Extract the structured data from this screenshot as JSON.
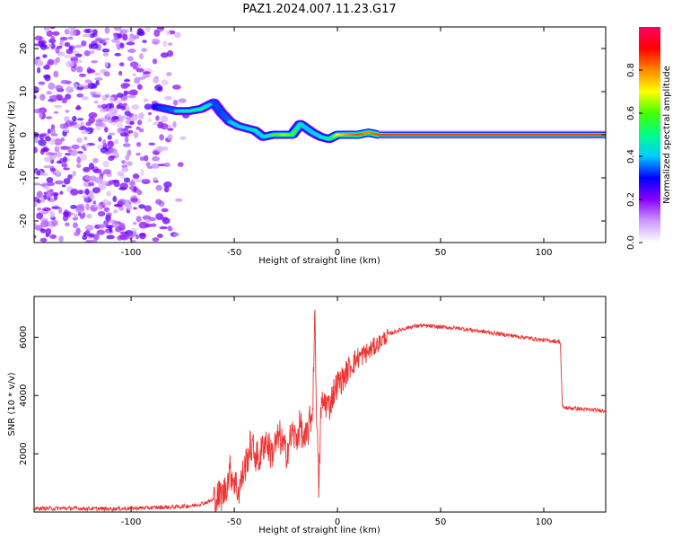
{
  "title": "PAZ1.2024.007.11.23.G17",
  "chart_data": [
    {
      "type": "heatmap",
      "xlabel": "Height of straight line (km)",
      "ylabel": "Frequency (Hz)",
      "xlim": [
        -147,
        130
      ],
      "ylim": [
        -25,
        25
      ],
      "xticks": [
        -100,
        -50,
        0,
        50,
        100
      ],
      "yticks": [
        -20,
        -10,
        0,
        10,
        20
      ],
      "colorbar": {
        "label": "Normalized spectral amplitude",
        "range": [
          0,
          1
        ],
        "ticks": [
          0.0,
          0.2,
          0.4,
          0.6,
          0.8
        ],
        "colors": [
          "#ffffff",
          "#cc99ff",
          "#8800ff",
          "#0000ff",
          "#00ccff",
          "#00ff88",
          "#44ff00",
          "#ffff00",
          "#ff8800",
          "#ff0000",
          "#ff0066"
        ]
      },
      "noise_region": {
        "x": [
          -147,
          -70
        ],
        "y": [
          -25,
          25
        ],
        "amplitude": [
          0.05,
          0.25
        ]
      },
      "ridge": [
        {
          "x": -88,
          "freq": 6.5,
          "amp": 0.3
        },
        {
          "x": -83,
          "freq": 6.0,
          "amp": 0.35
        },
        {
          "x": -78,
          "freq": 5.5,
          "amp": 0.4
        },
        {
          "x": -72,
          "freq": 5.5,
          "amp": 0.45
        },
        {
          "x": -66,
          "freq": 6.0,
          "amp": 0.5
        },
        {
          "x": -60,
          "freq": 7.5,
          "amp": 0.35
        },
        {
          "x": -56,
          "freq": 5.0,
          "amp": 0.35
        },
        {
          "x": -52,
          "freq": 3.0,
          "amp": 0.4
        },
        {
          "x": -48,
          "freq": 2.0,
          "amp": 0.4
        },
        {
          "x": -44,
          "freq": 1.5,
          "amp": 0.4
        },
        {
          "x": -40,
          "freq": 1.0,
          "amp": 0.45
        },
        {
          "x": -36,
          "freq": -0.5,
          "amp": 0.4
        },
        {
          "x": -31,
          "freq": 0.0,
          "amp": 0.55
        },
        {
          "x": -26,
          "freq": 0.0,
          "amp": 0.65
        },
        {
          "x": -22,
          "freq": 0.0,
          "amp": 0.6
        },
        {
          "x": -18,
          "freq": 2.5,
          "amp": 0.45
        },
        {
          "x": -15,
          "freq": 1.5,
          "amp": 0.4
        },
        {
          "x": -12,
          "freq": 0.5,
          "amp": 0.4
        },
        {
          "x": -8,
          "freq": -0.5,
          "amp": 0.45
        },
        {
          "x": -4,
          "freq": -1.0,
          "amp": 0.5
        },
        {
          "x": 0,
          "freq": 0.0,
          "amp": 0.7
        },
        {
          "x": 5,
          "freq": 0.0,
          "amp": 0.8
        },
        {
          "x": 10,
          "freq": 0.0,
          "amp": 0.85
        },
        {
          "x": 15,
          "freq": 0.5,
          "amp": 0.8
        },
        {
          "x": 20,
          "freq": 0.0,
          "amp": 0.85
        }
      ],
      "carrier": {
        "x": [
          20,
          130
        ],
        "freq": 0,
        "amp": 0.9
      }
    },
    {
      "type": "line",
      "xlabel": "Height of straight line (km)",
      "ylabel": "SNR (10 * v/v)",
      "xlim": [
        -147,
        130
      ],
      "ylim": [
        0,
        7400
      ],
      "xticks": [
        -100,
        -50,
        0,
        50,
        100
      ],
      "yticks": [
        2000,
        4000,
        6000
      ],
      "color": "#ee3333",
      "series": [
        {
          "x": [
            -147,
            -130,
            -110,
            -90,
            -80,
            -70,
            -65,
            -60,
            -55,
            -52,
            -50,
            -48,
            -45,
            -42,
            -40,
            -38,
            -35,
            -32,
            -30,
            -28,
            -25,
            -22,
            -20,
            -18,
            -16,
            -14,
            -12,
            -11,
            -10,
            -9,
            -8,
            -6,
            -4,
            -2,
            0,
            3,
            6,
            10,
            15,
            20,
            25,
            30,
            35,
            40,
            50,
            60,
            70,
            80,
            90,
            100,
            108,
            109,
            110,
            115,
            120,
            130
          ],
          "y": [
            120,
            130,
            110,
            150,
            170,
            220,
            300,
            420,
            650,
            1400,
            1100,
            700,
            1500,
            2300,
            2000,
            1800,
            2500,
            2000,
            2300,
            2600,
            2000,
            2700,
            2500,
            3000,
            2300,
            2900,
            3500,
            6900,
            3200,
            600,
            3600,
            3800,
            3600,
            4100,
            4400,
            4600,
            5000,
            5300,
            5500,
            5800,
            6100,
            6250,
            6350,
            6400,
            6350,
            6300,
            6200,
            6100,
            6000,
            5900,
            5850,
            3600,
            3580,
            3560,
            3520,
            3480
          ]
        }
      ]
    }
  ]
}
